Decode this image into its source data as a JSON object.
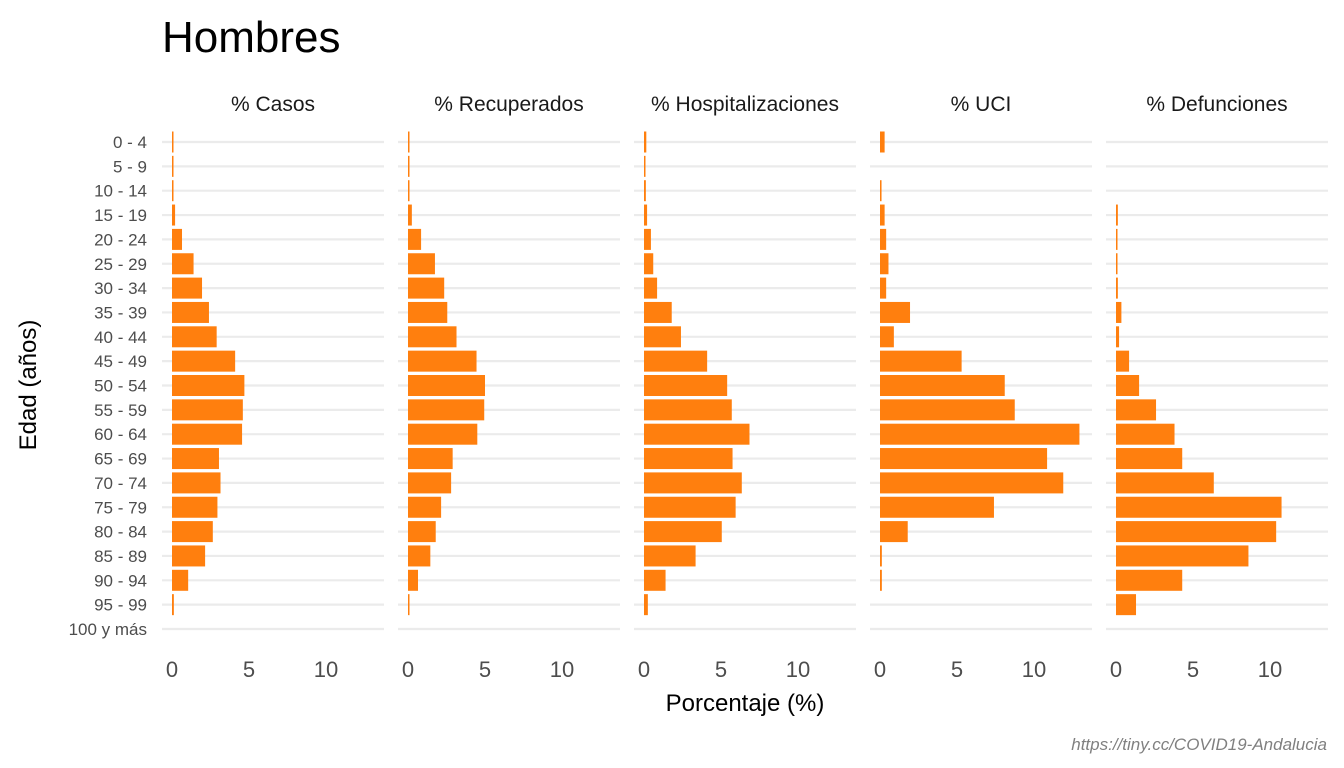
{
  "chart_data": {
    "type": "bar",
    "orientation": "horizontal",
    "title": "Hombres",
    "xlabel": "Porcentaje (%)",
    "ylabel": "Edad (años)",
    "caption": "https://tiny.cc/COVID19-Andalucia",
    "bar_color": "#ff7f0e",
    "grid": true,
    "xlim": [
      0,
      13.5
    ],
    "xticks": [
      "0",
      "5",
      "10"
    ],
    "categories": [
      "0 - 4",
      "5 - 9",
      "10 - 14",
      "15 - 19",
      "20 - 24",
      "25 - 29",
      "30 - 34",
      "35 - 39",
      "40 - 44",
      "45 - 49",
      "50 - 54",
      "55 - 59",
      "60 - 64",
      "65 - 69",
      "70 - 74",
      "75 - 79",
      "80 - 84",
      "85 - 89",
      "90 - 94",
      "95 - 99",
      "100 y más"
    ],
    "facets": [
      {
        "name": "% Casos",
        "values": [
          0.08,
          0.05,
          0.05,
          0.2,
          0.65,
          1.4,
          1.95,
          2.4,
          2.9,
          4.1,
          4.7,
          4.6,
          4.55,
          3.05,
          3.15,
          2.95,
          2.65,
          2.15,
          1.05,
          0.12,
          0.0
        ]
      },
      {
        "name": "% Recuperados",
        "values": [
          0.05,
          0.05,
          0.05,
          0.25,
          0.85,
          1.75,
          2.35,
          2.55,
          3.15,
          4.45,
          5.0,
          4.95,
          4.5,
          2.9,
          2.8,
          2.15,
          1.8,
          1.45,
          0.65,
          0.05,
          0.0
        ]
      },
      {
        "name": "% Hospitalizaciones",
        "values": [
          0.15,
          0.05,
          0.12,
          0.2,
          0.45,
          0.6,
          0.85,
          1.8,
          2.4,
          4.1,
          5.4,
          5.7,
          6.85,
          5.75,
          6.35,
          5.95,
          5.05,
          3.35,
          1.4,
          0.25,
          0.0
        ]
      },
      {
        "name": "% UCI",
        "values": [
          0.3,
          0.0,
          0.1,
          0.3,
          0.4,
          0.55,
          0.4,
          1.95,
          0.9,
          5.3,
          8.1,
          8.75,
          12.95,
          10.85,
          11.9,
          7.4,
          1.8,
          0.12,
          0.12,
          0.0,
          0.0
        ]
      },
      {
        "name": "% Defunciones",
        "values": [
          0.0,
          0.0,
          0.0,
          0.12,
          0.05,
          0.05,
          0.12,
          0.35,
          0.2,
          0.85,
          1.5,
          2.6,
          3.8,
          4.3,
          6.35,
          10.75,
          10.4,
          8.6,
          4.3,
          1.3,
          0.0
        ]
      }
    ]
  }
}
